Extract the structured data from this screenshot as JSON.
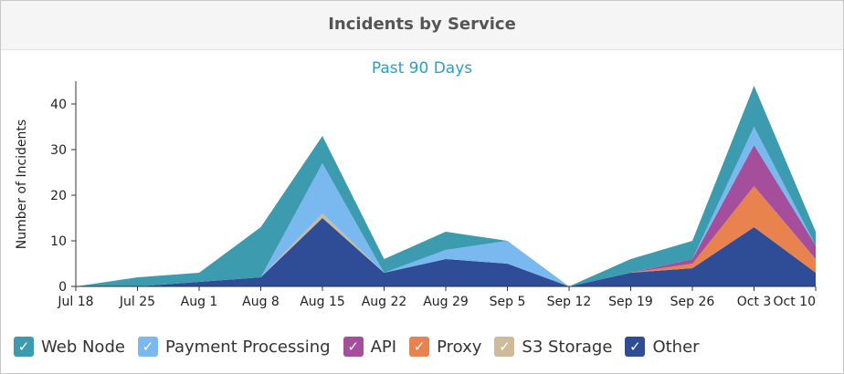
{
  "panel": {
    "title": "Incidents by Service"
  },
  "chart_data": {
    "type": "area",
    "stacked": true,
    "title": "Past 90 Days",
    "xlabel": "",
    "ylabel": "Number of Incidents",
    "x": [
      "Jul 18",
      "Jul 25",
      "Aug 1",
      "Aug 8",
      "Aug 15",
      "Aug 22",
      "Aug 29",
      "Sep 5",
      "Sep 12",
      "Sep 19",
      "Sep 26",
      "Oct 3",
      "Oct 10"
    ],
    "ylim": [
      0,
      45
    ],
    "yticks": [
      0,
      10,
      20,
      30,
      40
    ],
    "grid": false,
    "legend_position": "bottom",
    "series": [
      {
        "name": "Other",
        "color": "#2f4d96",
        "values": [
          0,
          0,
          1,
          2,
          15,
          3,
          6,
          5,
          0,
          3,
          4,
          13,
          3
        ]
      },
      {
        "name": "S3 Storage",
        "color": "#cdbb9c",
        "values": [
          0,
          0,
          0,
          0,
          1,
          0,
          0,
          0,
          0,
          0,
          0,
          0,
          0
        ]
      },
      {
        "name": "Proxy",
        "color": "#e8834f",
        "values": [
          0,
          0,
          0,
          0,
          0,
          0,
          0,
          0,
          0,
          0,
          1,
          9,
          3
        ]
      },
      {
        "name": "API",
        "color": "#a54e9b",
        "values": [
          0,
          0,
          0,
          0,
          0,
          0,
          0,
          0,
          0,
          0,
          1,
          9,
          3
        ]
      },
      {
        "name": "Payment Processing",
        "color": "#7ab9f0",
        "values": [
          0,
          0,
          0,
          0,
          11,
          0,
          2,
          5,
          0,
          0,
          0,
          4,
          0
        ]
      },
      {
        "name": "Web Node",
        "color": "#3d9bb0",
        "values": [
          0,
          2,
          2,
          11,
          6,
          3,
          4,
          0,
          0,
          3,
          4,
          9,
          3
        ]
      }
    ]
  },
  "legend": [
    {
      "label": "Web Node",
      "color": "#3d9bb0"
    },
    {
      "label": "Payment Processing",
      "color": "#7ab9f0"
    },
    {
      "label": "API",
      "color": "#a54e9b"
    },
    {
      "label": "Proxy",
      "color": "#e8834f"
    },
    {
      "label": "S3 Storage",
      "color": "#cdbb9c"
    },
    {
      "label": "Other",
      "color": "#2f4d96"
    }
  ]
}
